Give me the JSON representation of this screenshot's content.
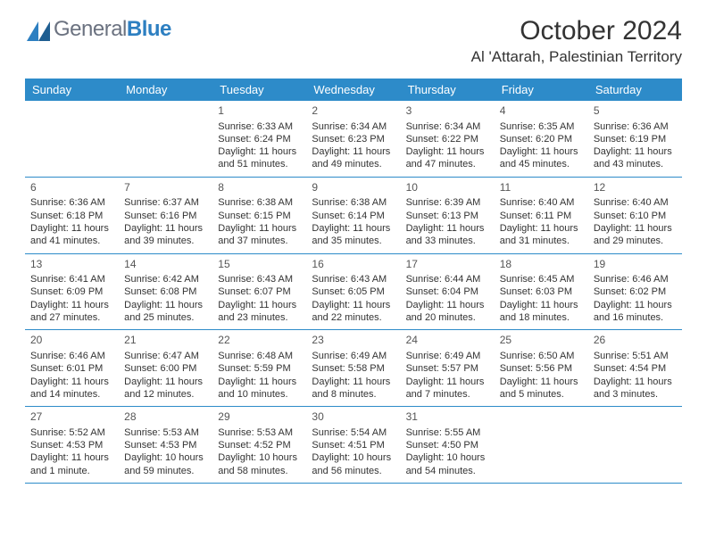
{
  "logo": {
    "text_general": "General",
    "text_blue": "Blue"
  },
  "title": "October 2024",
  "subtitle": "Al 'Attarah, Palestinian Territory",
  "colors": {
    "header_bg": "#2d8bc9",
    "header_text": "#ffffff",
    "border": "#2d8bc9",
    "body_text": "#333333",
    "logo_gray": "#6b7280",
    "logo_blue": "#2d7fc1",
    "page_bg": "#ffffff"
  },
  "day_names": [
    "Sunday",
    "Monday",
    "Tuesday",
    "Wednesday",
    "Thursday",
    "Friday",
    "Saturday"
  ],
  "weeks": [
    [
      null,
      null,
      {
        "n": "1",
        "sr": "6:33 AM",
        "ss": "6:24 PM",
        "dl": "11 hours and 51 minutes."
      },
      {
        "n": "2",
        "sr": "6:34 AM",
        "ss": "6:23 PM",
        "dl": "11 hours and 49 minutes."
      },
      {
        "n": "3",
        "sr": "6:34 AM",
        "ss": "6:22 PM",
        "dl": "11 hours and 47 minutes."
      },
      {
        "n": "4",
        "sr": "6:35 AM",
        "ss": "6:20 PM",
        "dl": "11 hours and 45 minutes."
      },
      {
        "n": "5",
        "sr": "6:36 AM",
        "ss": "6:19 PM",
        "dl": "11 hours and 43 minutes."
      }
    ],
    [
      {
        "n": "6",
        "sr": "6:36 AM",
        "ss": "6:18 PM",
        "dl": "11 hours and 41 minutes."
      },
      {
        "n": "7",
        "sr": "6:37 AM",
        "ss": "6:16 PM",
        "dl": "11 hours and 39 minutes."
      },
      {
        "n": "8",
        "sr": "6:38 AM",
        "ss": "6:15 PM",
        "dl": "11 hours and 37 minutes."
      },
      {
        "n": "9",
        "sr": "6:38 AM",
        "ss": "6:14 PM",
        "dl": "11 hours and 35 minutes."
      },
      {
        "n": "10",
        "sr": "6:39 AM",
        "ss": "6:13 PM",
        "dl": "11 hours and 33 minutes."
      },
      {
        "n": "11",
        "sr": "6:40 AM",
        "ss": "6:11 PM",
        "dl": "11 hours and 31 minutes."
      },
      {
        "n": "12",
        "sr": "6:40 AM",
        "ss": "6:10 PM",
        "dl": "11 hours and 29 minutes."
      }
    ],
    [
      {
        "n": "13",
        "sr": "6:41 AM",
        "ss": "6:09 PM",
        "dl": "11 hours and 27 minutes."
      },
      {
        "n": "14",
        "sr": "6:42 AM",
        "ss": "6:08 PM",
        "dl": "11 hours and 25 minutes."
      },
      {
        "n": "15",
        "sr": "6:43 AM",
        "ss": "6:07 PM",
        "dl": "11 hours and 23 minutes."
      },
      {
        "n": "16",
        "sr": "6:43 AM",
        "ss": "6:05 PM",
        "dl": "11 hours and 22 minutes."
      },
      {
        "n": "17",
        "sr": "6:44 AM",
        "ss": "6:04 PM",
        "dl": "11 hours and 20 minutes."
      },
      {
        "n": "18",
        "sr": "6:45 AM",
        "ss": "6:03 PM",
        "dl": "11 hours and 18 minutes."
      },
      {
        "n": "19",
        "sr": "6:46 AM",
        "ss": "6:02 PM",
        "dl": "11 hours and 16 minutes."
      }
    ],
    [
      {
        "n": "20",
        "sr": "6:46 AM",
        "ss": "6:01 PM",
        "dl": "11 hours and 14 minutes."
      },
      {
        "n": "21",
        "sr": "6:47 AM",
        "ss": "6:00 PM",
        "dl": "11 hours and 12 minutes."
      },
      {
        "n": "22",
        "sr": "6:48 AM",
        "ss": "5:59 PM",
        "dl": "11 hours and 10 minutes."
      },
      {
        "n": "23",
        "sr": "6:49 AM",
        "ss": "5:58 PM",
        "dl": "11 hours and 8 minutes."
      },
      {
        "n": "24",
        "sr": "6:49 AM",
        "ss": "5:57 PM",
        "dl": "11 hours and 7 minutes."
      },
      {
        "n": "25",
        "sr": "6:50 AM",
        "ss": "5:56 PM",
        "dl": "11 hours and 5 minutes."
      },
      {
        "n": "26",
        "sr": "5:51 AM",
        "ss": "4:54 PM",
        "dl": "11 hours and 3 minutes."
      }
    ],
    [
      {
        "n": "27",
        "sr": "5:52 AM",
        "ss": "4:53 PM",
        "dl": "11 hours and 1 minute."
      },
      {
        "n": "28",
        "sr": "5:53 AM",
        "ss": "4:53 PM",
        "dl": "10 hours and 59 minutes."
      },
      {
        "n": "29",
        "sr": "5:53 AM",
        "ss": "4:52 PM",
        "dl": "10 hours and 58 minutes."
      },
      {
        "n": "30",
        "sr": "5:54 AM",
        "ss": "4:51 PM",
        "dl": "10 hours and 56 minutes."
      },
      {
        "n": "31",
        "sr": "5:55 AM",
        "ss": "4:50 PM",
        "dl": "10 hours and 54 minutes."
      },
      null,
      null
    ]
  ],
  "labels": {
    "sunrise": "Sunrise:",
    "sunset": "Sunset:",
    "daylight": "Daylight:"
  }
}
